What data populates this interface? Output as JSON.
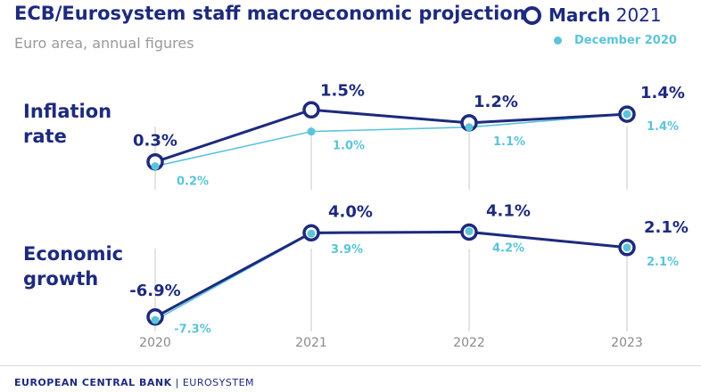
{
  "title": "ECB/Eurosystem staff macroeconomic projections",
  "subtitle": "Euro area, annual figures",
  "legend": {
    "current_prefix": "March",
    "current_year": "2021",
    "previous": "December 2020"
  },
  "footer": {
    "org": "EUROPEAN CENTRAL BANK",
    "separator": "|",
    "sub": "EUROSYSTEM"
  },
  "colors": {
    "current": "#1d2a7d",
    "previous": "#5bc4da",
    "gridline": "#c8c8c8"
  },
  "chart_data": [
    {
      "type": "line",
      "title": "Inflation rate",
      "unit": "%",
      "x": [
        "2020",
        "2021",
        "2022",
        "2023"
      ],
      "series": [
        {
          "name": "March 2021",
          "values": [
            0.3,
            1.5,
            1.2,
            1.4
          ],
          "labels": [
            "0.3%",
            "1.5%",
            "1.2%",
            "1.4%"
          ]
        },
        {
          "name": "December 2020",
          "values": [
            0.2,
            1.0,
            1.1,
            1.4
          ],
          "labels": [
            "0.2%",
            "1.0%",
            "1.1%",
            "1.4%"
          ]
        }
      ],
      "ylim": [
        0.15,
        1.65
      ]
    },
    {
      "type": "line",
      "title": "Economic growth",
      "unit": "%",
      "x": [
        "2020",
        "2021",
        "2022",
        "2023"
      ],
      "series": [
        {
          "name": "March 2021",
          "values": [
            -6.9,
            4.0,
            4.1,
            2.1
          ],
          "labels": [
            "-6.9%",
            "4.0%",
            "4.1%",
            "2.1%"
          ]
        },
        {
          "name": "December 2020",
          "values": [
            -7.3,
            3.9,
            4.2,
            2.1
          ],
          "labels": [
            "-7.3%",
            "3.9%",
            "4.2%",
            "2.1%"
          ]
        }
      ],
      "ylim": [
        -7.5,
        4.5
      ]
    }
  ]
}
